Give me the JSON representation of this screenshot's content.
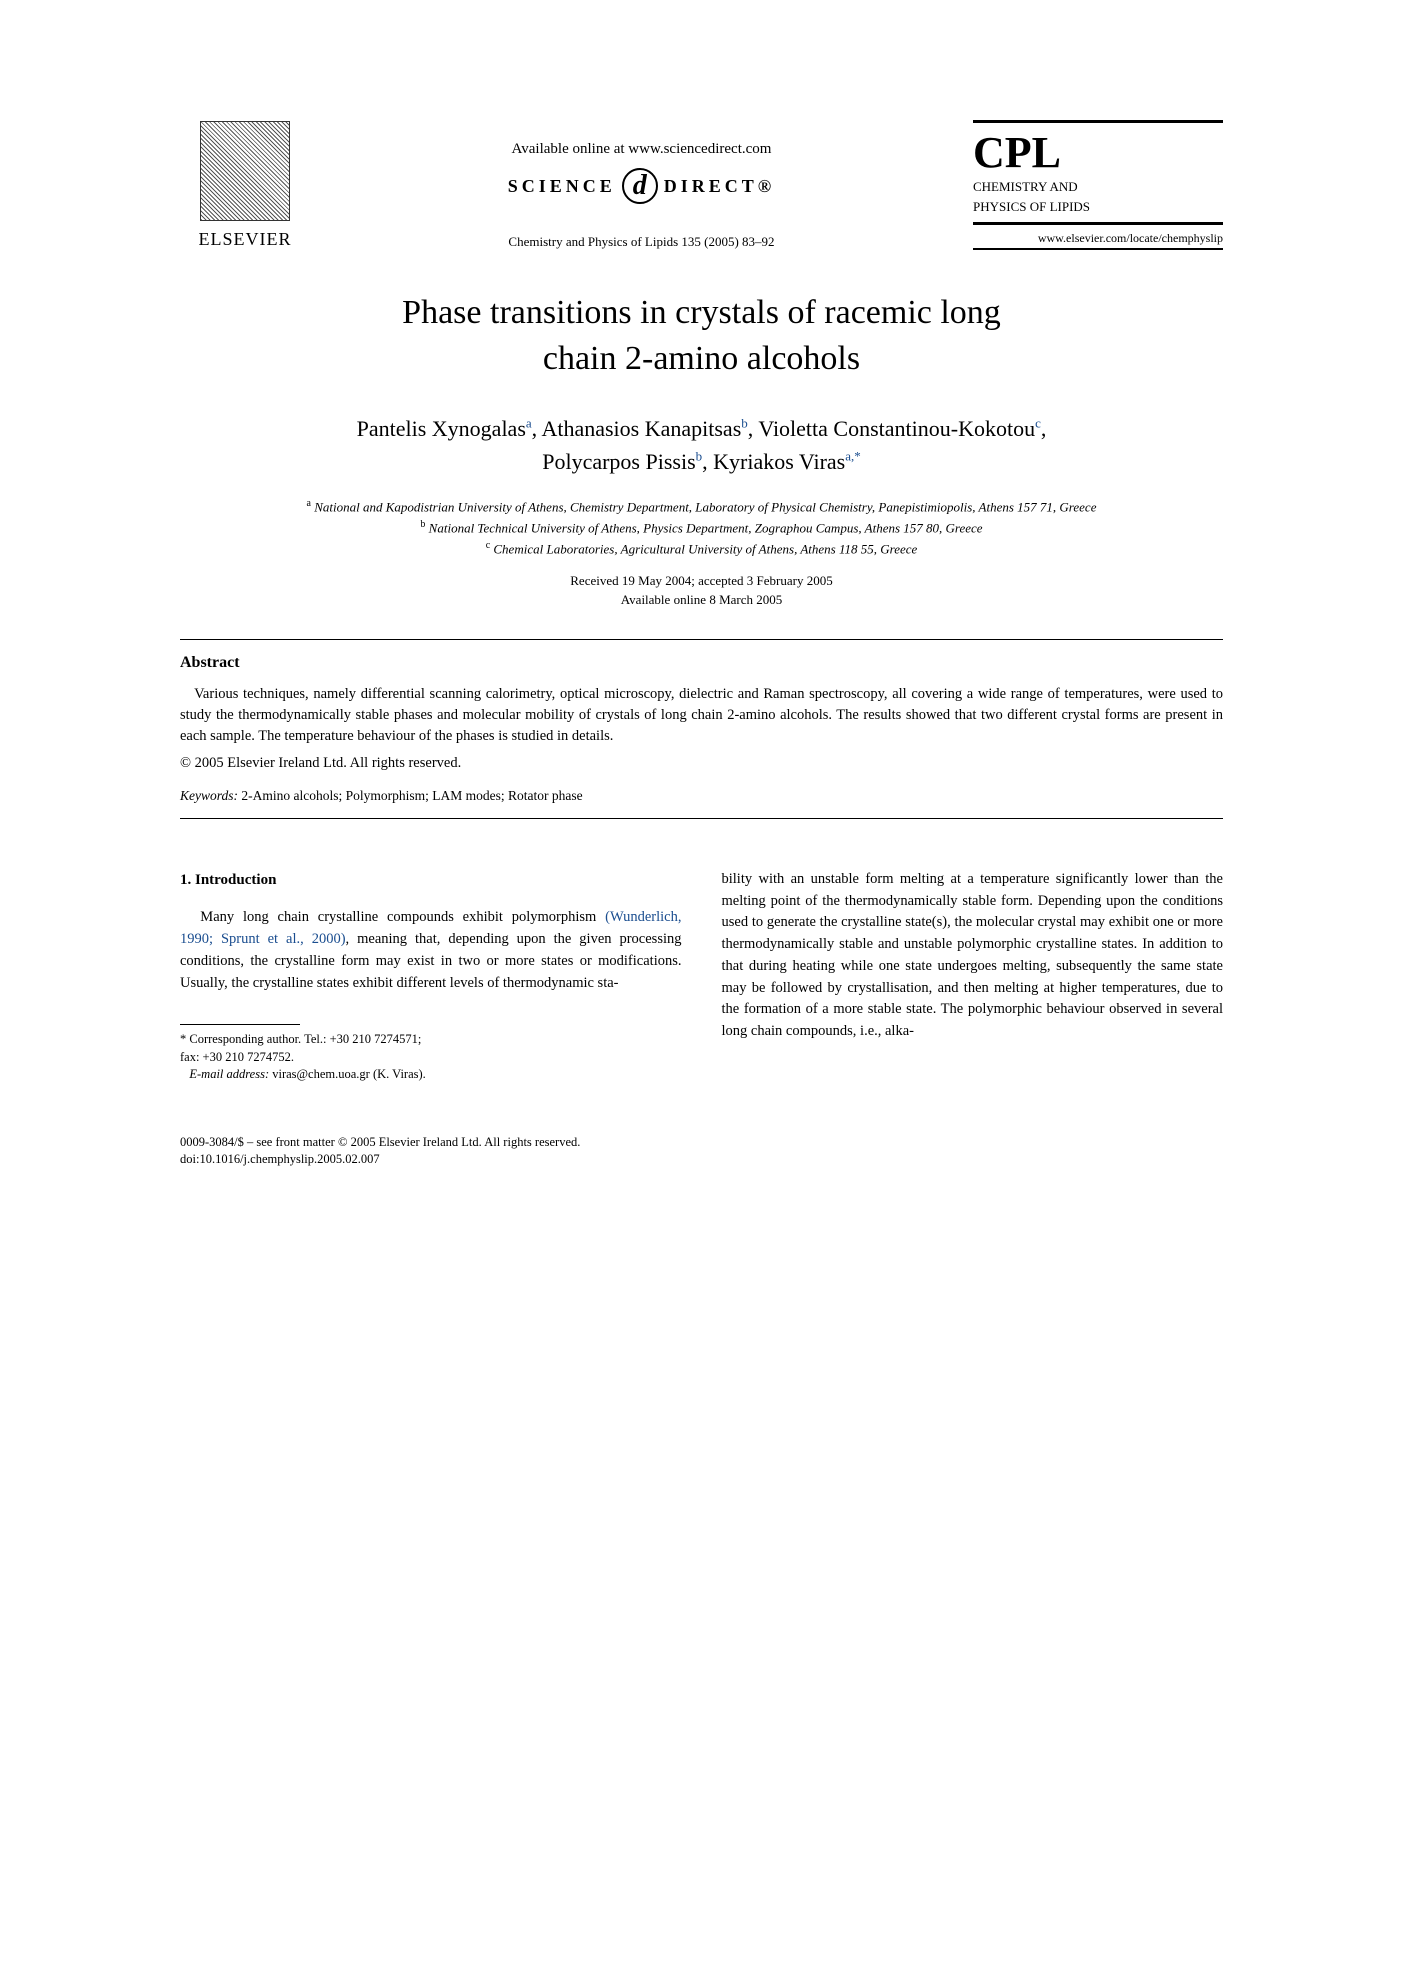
{
  "header": {
    "publisher": "ELSEVIER",
    "available_online": "Available online at www.sciencedirect.com",
    "science_direct_left": "SCIENCE",
    "science_direct_right": "DIRECT®",
    "journal_ref": "Chemistry and Physics of Lipids 135 (2005) 83–92",
    "cpl_acronym": "CPL",
    "cpl_full_1": "CHEMISTRY AND",
    "cpl_full_2": "PHYSICS OF LIPIDS",
    "cpl_url": "www.elsevier.com/locate/chemphyslip"
  },
  "title_line1": "Phase transitions in crystals of racemic long",
  "title_line2": "chain 2-amino alcohols",
  "authors": [
    {
      "name": "Pantelis Xynogalas",
      "aff": "a"
    },
    {
      "name": "Athanasios Kanapitsas",
      "aff": "b"
    },
    {
      "name": "Violetta Constantinou-Kokotou",
      "aff": "c"
    },
    {
      "name": "Polycarpos Pissis",
      "aff": "b"
    },
    {
      "name": "Kyriakos Viras",
      "aff": "a,*"
    }
  ],
  "affiliations": {
    "a": "National and Kapodistrian University of Athens, Chemistry Department, Laboratory of Physical Chemistry, Panepistimiopolis, Athens 157 71, Greece",
    "b": "National Technical University of Athens, Physics Department, Zographou Campus, Athens 157 80, Greece",
    "c": "Chemical Laboratories, Agricultural University of Athens, Athens 118 55, Greece"
  },
  "dates": {
    "received_accepted": "Received 19 May 2004; accepted 3 February 2005",
    "online": "Available online 8 March 2005"
  },
  "abstract": {
    "heading": "Abstract",
    "body": "Various techniques, namely differential scanning calorimetry, optical microscopy, dielectric and Raman spectroscopy, all covering a wide range of temperatures, were used to study the thermodynamically stable phases and molecular mobility of crystals of long chain 2-amino alcohols. The results showed that two different crystal forms are present in each sample. The temperature behaviour of the phases is studied in details.",
    "copyright": "© 2005 Elsevier Ireland Ltd. All rights reserved."
  },
  "keywords": {
    "label": "Keywords:",
    "values": "2-Amino alcohols; Polymorphism; LAM modes; Rotator phase"
  },
  "section1": {
    "heading": "1. Introduction",
    "col1_para": "Many long chain crystalline compounds exhibit polymorphism ",
    "col1_cite": "(Wunderlich, 1990; Sprunt et al., 2000)",
    "col1_para_cont": ", meaning that, depending upon the given processing conditions, the crystalline form may exist in two or more states or modifications. Usually, the crystalline states exhibit different levels of thermodynamic sta-",
    "col2_para": "bility with an unstable form melting at a temperature significantly lower than the melting point of the thermodynamically stable form. Depending upon the conditions used to generate the crystalline state(s), the molecular crystal may exhibit one or more thermodynamically stable and unstable polymorphic crystalline states. In addition to that during heating while one state undergoes melting, subsequently the same state may be followed by crystallisation, and then melting at higher temperatures, due to the formation of a more stable state. The polymorphic behaviour observed in several long chain compounds, i.e., alka-"
  },
  "footnote": {
    "corr": "* Corresponding author. Tel.: +30 210 7274571;",
    "fax": "fax: +30 210 7274752.",
    "email_label": "E-mail address:",
    "email": "viras@chem.uoa.gr (K. Viras)."
  },
  "footer": {
    "front_matter": "0009-3084/$ – see front matter © 2005 Elsevier Ireland Ltd. All rights reserved.",
    "doi": "doi:10.1016/j.chemphyslip.2005.02.007"
  },
  "colors": {
    "text": "#000000",
    "link": "#1a4d8f",
    "background": "#ffffff"
  }
}
